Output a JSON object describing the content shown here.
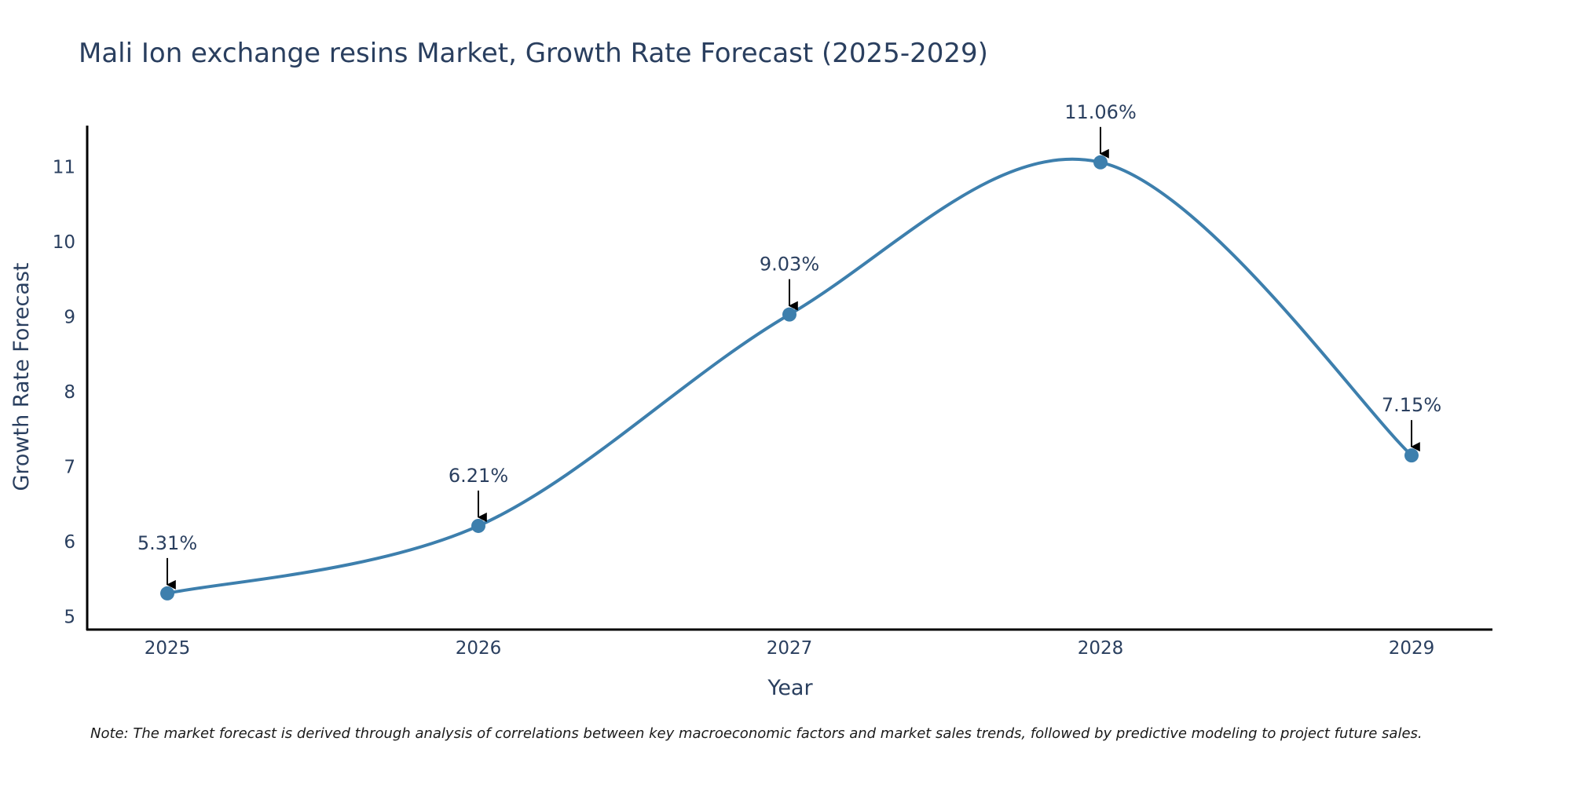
{
  "chart_data": {
    "type": "line",
    "title": "Mali Ion exchange resins Market, Growth Rate Forecast (2025-2029)",
    "xlabel": "Year",
    "ylabel": "Growth Rate Forecast",
    "categories": [
      "2025",
      "2026",
      "2027",
      "2028",
      "2029"
    ],
    "values": [
      5.31,
      6.21,
      9.03,
      11.06,
      7.15
    ],
    "data_labels": [
      "5.31%",
      "6.21%",
      "9.03%",
      "11.06%",
      "7.15%"
    ],
    "y_ticks": [
      5,
      6,
      7,
      8,
      9,
      10,
      11
    ],
    "ylim": [
      4.8,
      11.55
    ],
    "grid": false,
    "legend": "none",
    "line_shape": "spline"
  },
  "colors": {
    "line": "#3d7fad",
    "marker": "#3d7fad",
    "axis": "#000000",
    "text": "#2a3f5f",
    "arrow": "#000000"
  },
  "note": "Note: The market forecast is derived through analysis of correlations between key macroeconomic factors and market sales trends, followed by predictive modeling to project future sales."
}
